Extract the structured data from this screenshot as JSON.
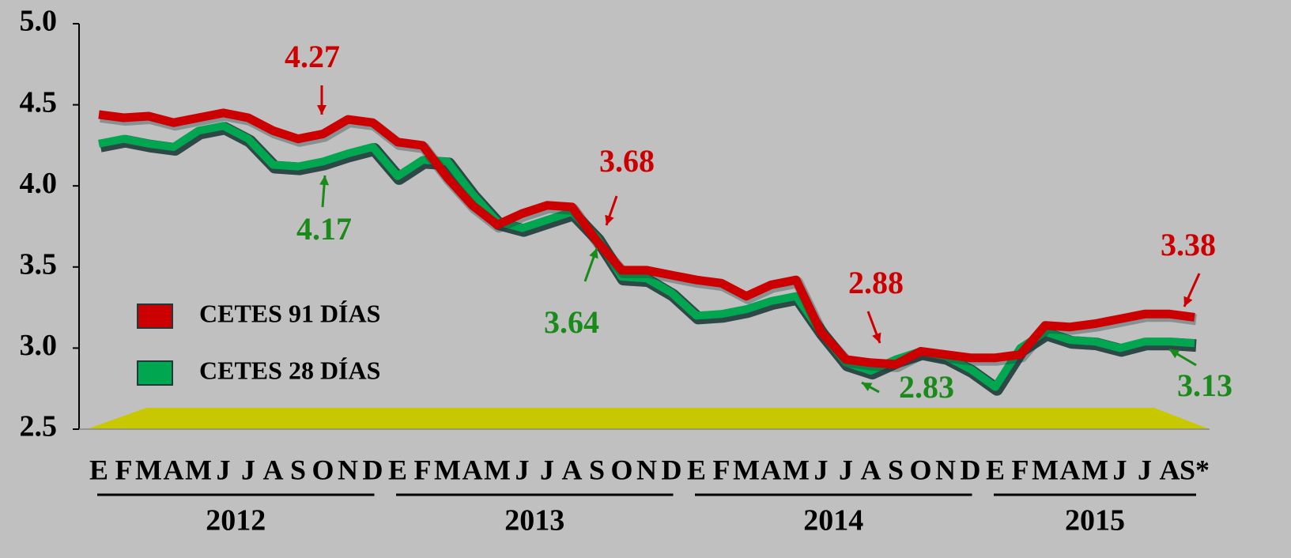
{
  "chart_data": {
    "type": "line",
    "categories": [
      "E",
      "F",
      "M",
      "A",
      "M",
      "J",
      "J",
      "A",
      "S",
      "O",
      "N",
      "D",
      "E",
      "F",
      "M",
      "A",
      "M",
      "J",
      "J",
      "A",
      "S",
      "O",
      "N",
      "D",
      "E",
      "F",
      "M",
      "A",
      "M",
      "J",
      "J",
      "A",
      "S",
      "O",
      "N",
      "D",
      "E",
      "F",
      "M",
      "A",
      "M",
      "J",
      "J",
      "A",
      "S*"
    ],
    "years": [
      "2012",
      "2013",
      "2014",
      "2015"
    ],
    "series": [
      {
        "name": "CETES 91 DÍAS",
        "color": "#cc0000",
        "values": [
          4.44,
          4.42,
          4.43,
          4.39,
          4.42,
          4.45,
          4.42,
          4.34,
          4.29,
          4.32,
          4.41,
          4.39,
          4.27,
          4.25,
          4.05,
          3.88,
          3.76,
          3.83,
          3.88,
          3.87,
          3.66,
          3.48,
          3.48,
          3.45,
          3.42,
          3.4,
          3.32,
          3.39,
          3.42,
          3.1,
          2.93,
          2.91,
          2.9,
          2.98,
          2.96,
          2.94,
          2.94,
          2.96,
          3.14,
          3.13,
          3.15,
          3.18,
          3.21,
          3.21,
          3.19
        ]
      },
      {
        "name": "CETES 28 DÍAS",
        "color": "#00a650",
        "values": [
          4.26,
          4.29,
          4.26,
          4.24,
          4.34,
          4.37,
          4.29,
          4.13,
          4.12,
          4.15,
          4.2,
          4.24,
          4.06,
          4.16,
          4.15,
          3.95,
          3.78,
          3.74,
          3.79,
          3.84,
          3.68,
          3.44,
          3.43,
          3.34,
          3.2,
          3.21,
          3.24,
          3.29,
          3.32,
          3.1,
          2.91,
          2.86,
          2.93,
          2.98,
          2.95,
          2.87,
          2.76,
          3.0,
          3.1,
          3.05,
          3.04,
          3.0,
          3.04,
          3.04,
          3.03
        ]
      }
    ],
    "annotations": [
      {
        "text": "4.27",
        "color": "#cc0000"
      },
      {
        "text": "4.17",
        "color": "#1a8a1a"
      },
      {
        "text": "3.68",
        "color": "#cc0000"
      },
      {
        "text": "3.64",
        "color": "#1a8a1a"
      },
      {
        "text": "2.88",
        "color": "#cc0000"
      },
      {
        "text": "2.83",
        "color": "#1a8a1a"
      },
      {
        "text": "3.38",
        "color": "#cc0000"
      },
      {
        "text": "3.13",
        "color": "#1a8a1a"
      }
    ],
    "ylim": [
      2.5,
      5.0
    ],
    "yticks": [
      2.5,
      {
        "value": 3,
        "label": "3.0"
      },
      3.5,
      {
        "value": 4,
        "label": "4.0"
      },
      4.5,
      {
        "value": 5,
        "label": "5.0"
      }
    ]
  }
}
